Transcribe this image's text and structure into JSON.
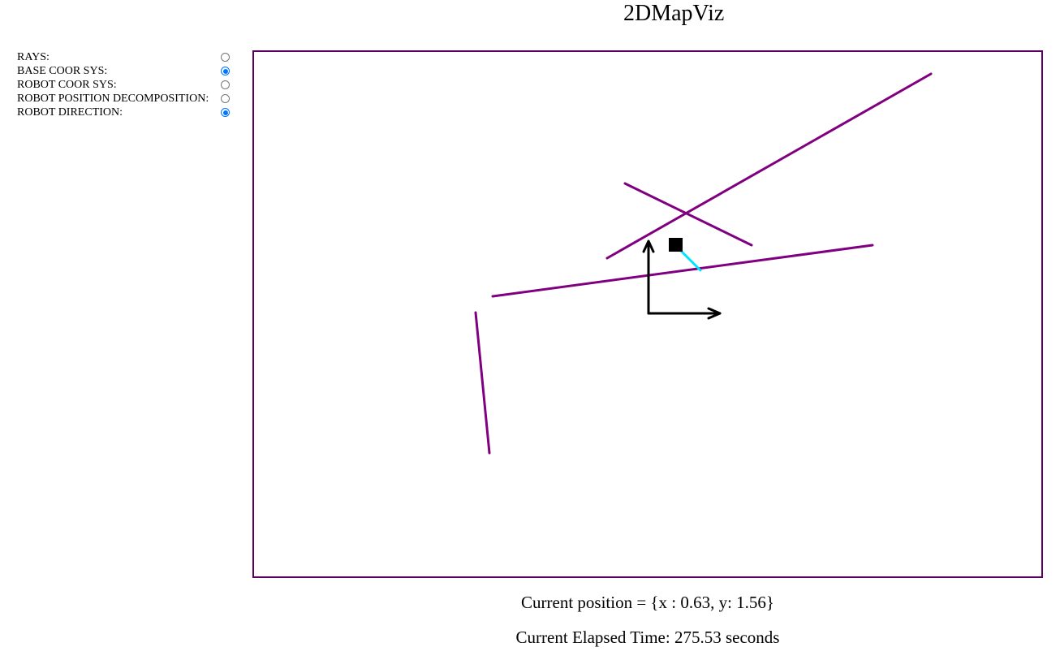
{
  "app": {
    "title": "2DMapViz"
  },
  "controls": [
    {
      "label": "RAYS:",
      "checked": false
    },
    {
      "label": "BASE COOR SYS:",
      "checked": true
    },
    {
      "label": "ROBOT COOR SYS:",
      "checked": false
    },
    {
      "label": "ROBOT POSITION DECOMPOSITION:",
      "checked": false
    },
    {
      "label": "ROBOT DIRECTION:",
      "checked": true
    }
  ],
  "colors": {
    "walls": "#800080",
    "frame": "#5a0060",
    "direction": "#00e5ff",
    "robot": "#000000",
    "axes": "#000000",
    "radio_checked": "#0075ff"
  },
  "status": {
    "position": "Current position = {x : 0.63, y: 1.56}",
    "elapsed": "Current Elapsed Time: 275.53 seconds"
  }
}
